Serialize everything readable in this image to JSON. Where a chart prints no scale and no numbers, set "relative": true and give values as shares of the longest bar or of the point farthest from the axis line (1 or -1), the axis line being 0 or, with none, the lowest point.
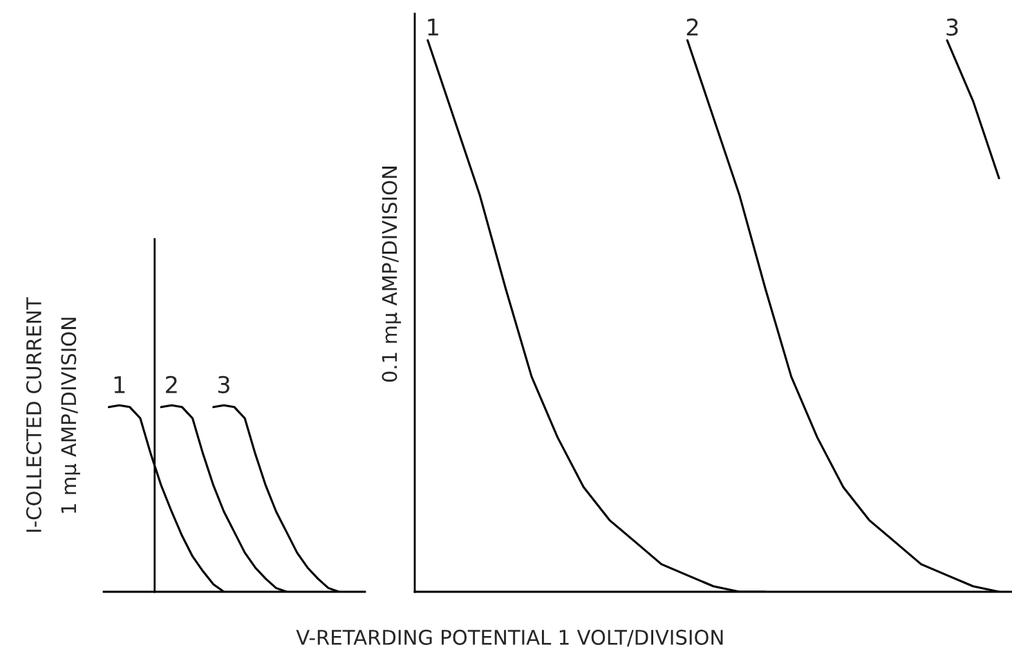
{
  "chart_data": [
    {
      "type": "line",
      "relative": true,
      "ylabel": "I-COLLECTED CURRENT\n1 mμ AMP/DIVISION",
      "categories": [
        null,
        null,
        null,
        null,
        null,
        null,
        null,
        null,
        null,
        null,
        null,
        null,
        null,
        null,
        null,
        null,
        null,
        null,
        null,
        null,
        null,
        null,
        null,
        null,
        null
      ],
      "series": [
        {
          "name": "1",
          "color": "#000000",
          "values": [
            0.99,
            1.0,
            0.99,
            0.93,
            0.74,
            0.57,
            0.43,
            0.3,
            0.19,
            0.11,
            0.04,
            0.0,
            null,
            null,
            null,
            null,
            null,
            null,
            null,
            null,
            null,
            null,
            null,
            null,
            null
          ]
        },
        {
          "name": "2",
          "color": "#000000",
          "values": [
            null,
            null,
            null,
            null,
            null,
            0.99,
            1.0,
            0.99,
            0.93,
            0.74,
            0.57,
            0.43,
            0.32,
            0.21,
            0.13,
            0.07,
            0.02,
            0.0,
            null,
            null,
            null,
            null,
            null,
            null,
            null
          ]
        },
        {
          "name": "3",
          "color": "#000000",
          "values": [
            null,
            null,
            null,
            null,
            null,
            null,
            null,
            null,
            null,
            null,
            0.99,
            1.0,
            0.99,
            0.93,
            0.74,
            0.57,
            0.43,
            0.32,
            0.21,
            0.13,
            0.07,
            0.02,
            0.0,
            null,
            null
          ]
        }
      ]
    },
    {
      "type": "line",
      "relative": true,
      "ylabel": "0.1 mμ AMP/DIVISION",
      "xlabel": "V-RETARDING POTENTIAL 1 VOLT/DIVISION",
      "categories": [
        null,
        null,
        null,
        null,
        null,
        null,
        null,
        null,
        null,
        null,
        null,
        null,
        null,
        null,
        null,
        null,
        null,
        null,
        null,
        null,
        null,
        null,
        null
      ],
      "series": [
        {
          "name": "1",
          "color": "#000000",
          "values": [
            1.0,
            0.86,
            0.72,
            0.55,
            0.39,
            0.28,
            0.19,
            0.13,
            0.09,
            0.05,
            0.03,
            0.01,
            0.0,
            0.0,
            null,
            null,
            null,
            null,
            null,
            null,
            null,
            null,
            null
          ]
        },
        {
          "name": "2",
          "color": "#000000",
          "values": [
            null,
            null,
            null,
            null,
            null,
            null,
            null,
            null,
            null,
            null,
            1.0,
            0.86,
            0.72,
            0.55,
            0.39,
            0.28,
            0.19,
            0.13,
            0.09,
            0.05,
            0.03,
            0.01,
            0.0
          ]
        },
        {
          "name": "3",
          "color": "#000000",
          "values": [
            null,
            null,
            null,
            null,
            null,
            null,
            null,
            null,
            null,
            null,
            null,
            null,
            null,
            null,
            null,
            null,
            null,
            null,
            null,
            null,
            1.0,
            0.89,
            0.75
          ]
        }
      ]
    }
  ]
}
